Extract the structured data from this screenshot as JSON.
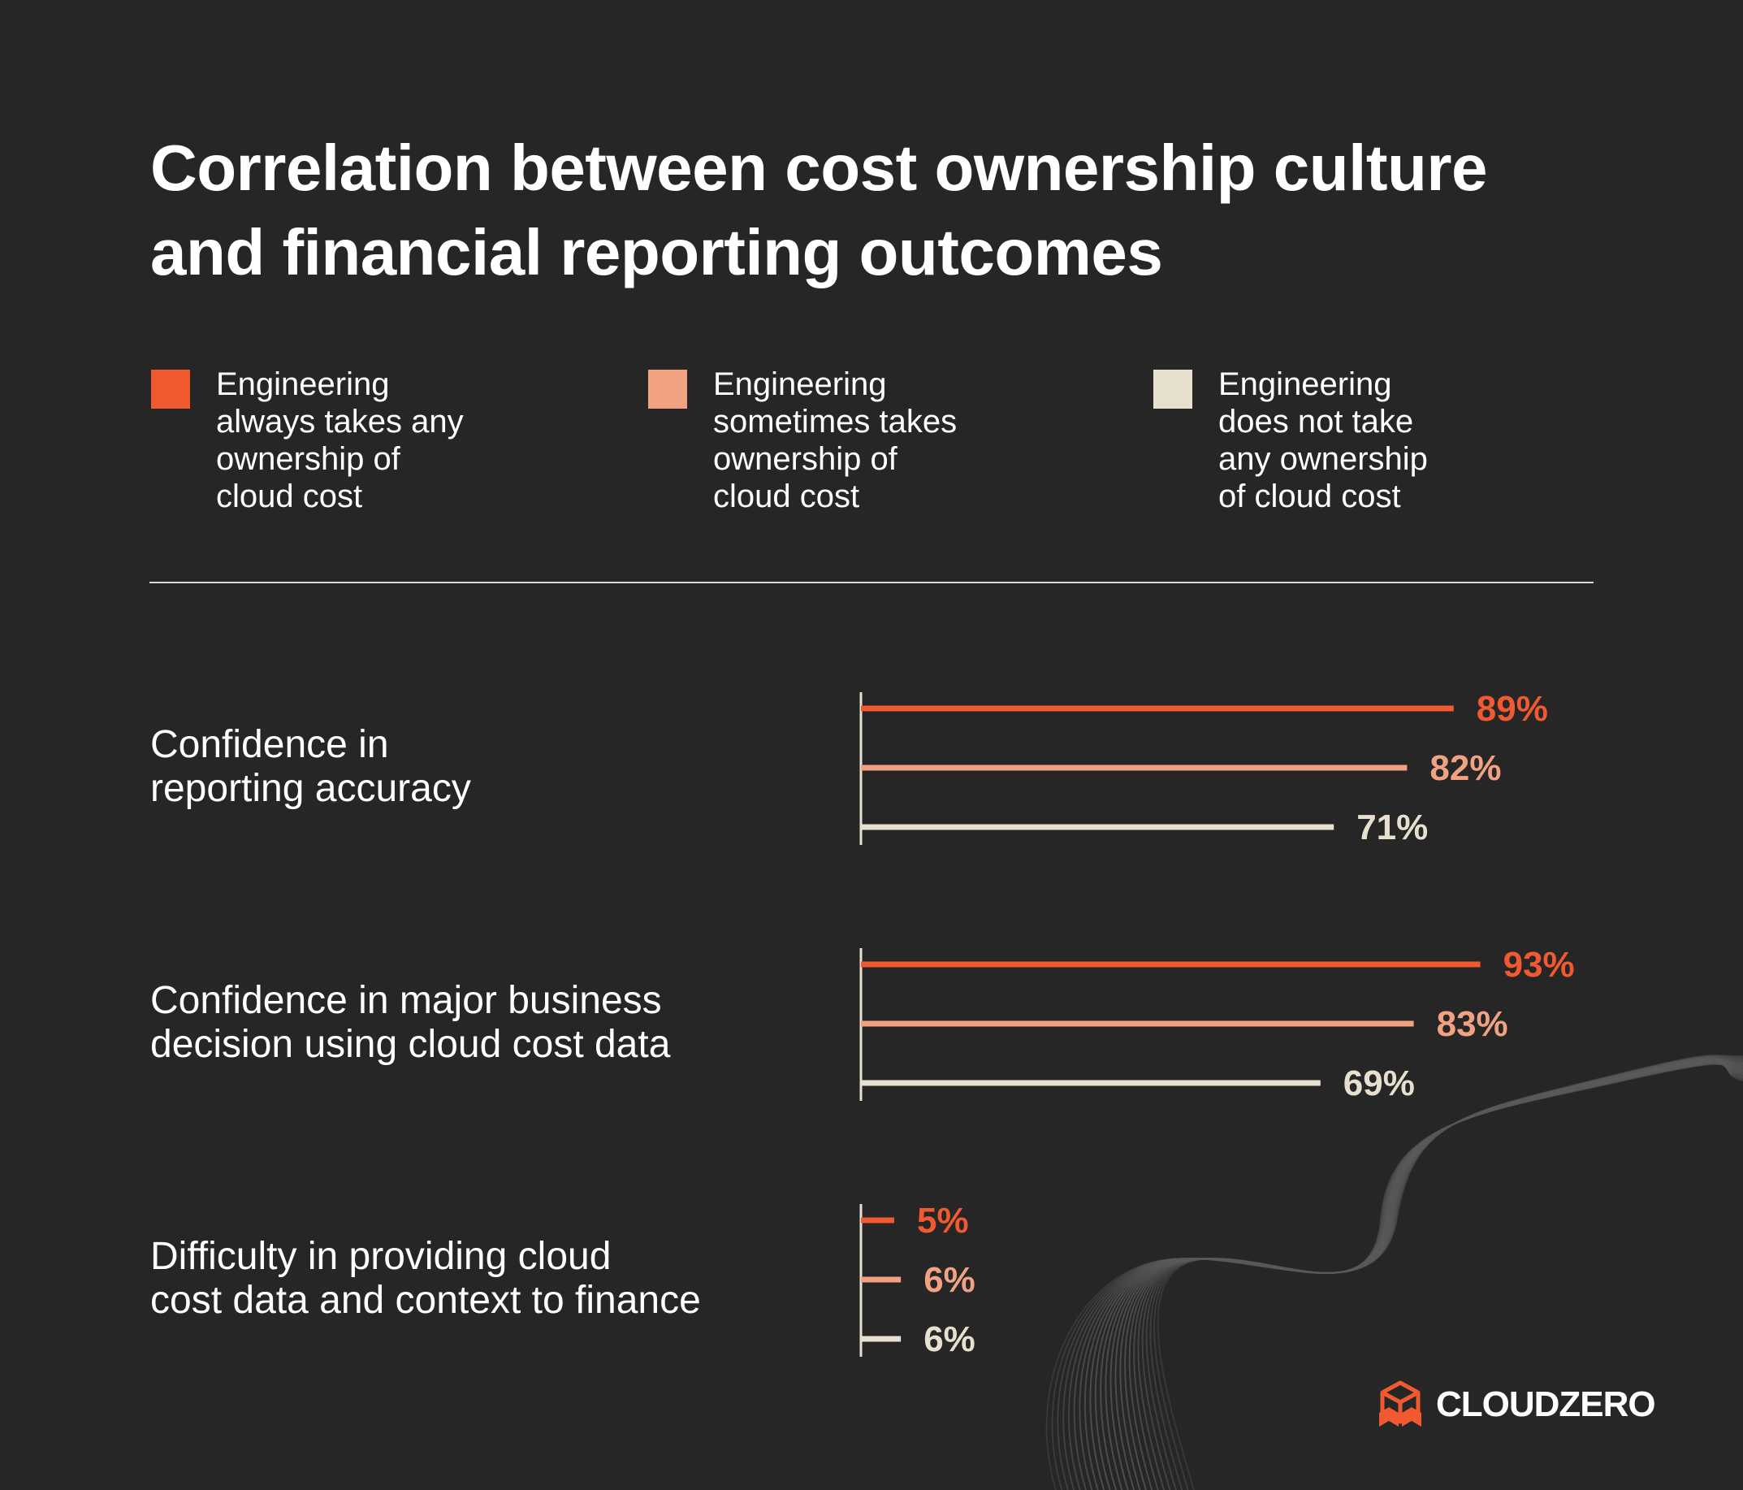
{
  "title": {
    "line1": "Correlation between cost ownership culture",
    "line2": "and financial reporting outcomes"
  },
  "legend": [
    {
      "lines": [
        "Engineering",
        "always takes any",
        "ownership of",
        "cloud cost"
      ],
      "color": "#f15a31"
    },
    {
      "lines": [
        "Engineering",
        "sometimes takes",
        "ownership of",
        "cloud cost"
      ],
      "color": "#f0a283"
    },
    {
      "lines": [
        "Engineering",
        "does not take",
        "any ownership",
        "of cloud cost"
      ],
      "color": "#e8e0cf"
    }
  ],
  "chart_data": {
    "type": "bar",
    "orientation": "horizontal",
    "categories": [
      "Confidence in reporting accuracy",
      "Confidence in major business decision using cloud cost data",
      "Difficulty in providing cloud cost data and context to finance"
    ],
    "category_lines": [
      [
        "Confidence in",
        "reporting accuracy"
      ],
      [
        "Confidence in major business",
        "decision using cloud cost data"
      ],
      [
        "Difficulty in providing cloud",
        "cost data and context to finance"
      ]
    ],
    "series": [
      {
        "name": "Engineering always takes any ownership of cloud cost",
        "color": "#f15a31",
        "values": [
          89,
          93,
          5
        ],
        "labels": [
          "89%",
          "93%",
          "5%"
        ]
      },
      {
        "name": "Engineering sometimes takes ownership of cloud cost",
        "color": "#f0a283",
        "values": [
          82,
          83,
          6
        ],
        "labels": [
          "82%",
          "83%",
          "6%"
        ]
      },
      {
        "name": "Engineering does not take any ownership of cloud cost",
        "color": "#e8e0cf",
        "values": [
          71,
          69,
          6
        ],
        "labels": [
          "71%",
          "69%",
          "6%"
        ]
      }
    ],
    "unit": "%",
    "xlim": [
      0,
      100
    ],
    "grid": false,
    "legend_position": "top"
  },
  "logo": {
    "text": "CLOUDZERO",
    "color": "#f15a31"
  },
  "colors": {
    "background": "#262626",
    "text": "#ffffff",
    "axis": "#e8e0cf"
  }
}
